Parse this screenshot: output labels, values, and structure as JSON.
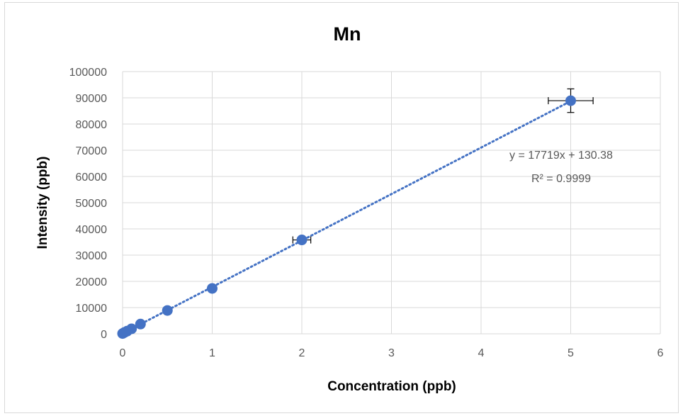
{
  "chart_data": {
    "type": "scatter",
    "title": "Mn",
    "xlabel": "Concentration (ppb)",
    "ylabel": "Intensity (ppb)",
    "xlim": [
      0,
      6
    ],
    "ylim": [
      0,
      100000
    ],
    "x_ticks": [
      "0",
      "1",
      "2",
      "3",
      "4",
      "5",
      "6"
    ],
    "y_ticks": [
      "0",
      "10000",
      "20000",
      "30000",
      "40000",
      "50000",
      "60000",
      "70000",
      "80000",
      "90000",
      "100000"
    ],
    "grid": true,
    "legend": "none",
    "series": [
      {
        "points": [
          {
            "x": 0,
            "y": 100
          },
          {
            "x": 0.02,
            "y": 500
          },
          {
            "x": 0.05,
            "y": 1000
          },
          {
            "x": 0.1,
            "y": 1900
          },
          {
            "x": 0.2,
            "y": 3700
          },
          {
            "x": 0.5,
            "y": 8900
          },
          {
            "x": 1,
            "y": 17300
          },
          {
            "x": 2,
            "y": 35800
          },
          {
            "x": 5,
            "y": 88900
          }
        ],
        "error_bars": [
          {
            "x": 2,
            "xerr": 0.1,
            "yerr": 1000
          },
          {
            "x": 5,
            "xerr": 0.25,
            "yerr": 4500
          }
        ],
        "color": "#4472c4"
      }
    ],
    "trendline": {
      "type": "linear",
      "slope": 17719,
      "intercept": 130.38,
      "equation": "y = 17719x + 130.38",
      "r_squared": "R² = 0.9999",
      "style": "dotted",
      "color": "#4472c4"
    }
  }
}
